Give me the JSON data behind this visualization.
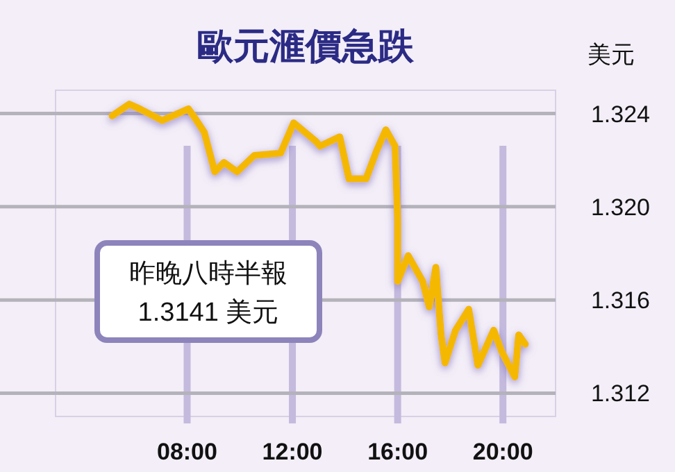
{
  "chart_data": {
    "type": "line",
    "title": "歐元滙價急跌",
    "ylabel": "美元",
    "annotations": [
      "昨晚八時半報\n1.3141 美元"
    ],
    "x": [
      5.15,
      5.8,
      6.2,
      7.05,
      8.05,
      8.3,
      8.65,
      9.05,
      9.4,
      9.9,
      10.55,
      11.55,
      12.05,
      12.9,
      13.05,
      13.8,
      14.15,
      14.8,
      15.2,
      15.55,
      15.9,
      16.0,
      16.0,
      16.4,
      16.95,
      17.2,
      17.45,
      17.65,
      17.8,
      18.2,
      18.7,
      19.05,
      19.65,
      19.95,
      20.45,
      20.6,
      20.85
    ],
    "series": [
      {
        "color": "#f5b800",
        "values": [
          1.3239,
          1.3244,
          1.3242,
          1.3237,
          1.3242,
          1.3238,
          1.3232,
          1.3215,
          1.3219,
          1.3215,
          1.3222,
          1.3223,
          1.3236,
          1.3228,
          1.3226,
          1.323,
          1.3212,
          1.3212,
          1.3224,
          1.3233,
          1.3226,
          1.3194,
          1.3168,
          1.3179,
          1.3168,
          1.3157,
          1.3174,
          1.3145,
          1.3133,
          1.3147,
          1.3156,
          1.3132,
          1.3147,
          1.3138,
          1.3127,
          1.3145,
          1.3141
        ]
      }
    ],
    "xlim": [
      3,
      22
    ],
    "ylim": [
      1.311,
      1.325
    ],
    "xticks": [
      {
        "value": 8,
        "label": "08:00"
      },
      {
        "value": 12,
        "label": "12:00"
      },
      {
        "value": 16,
        "label": "16:00"
      },
      {
        "value": 20,
        "label": "20:00"
      }
    ],
    "yticks": [
      1.312,
      1.316,
      {
        "value": 1.32,
        "label": "1.320"
      },
      1.324
    ],
    "grid": true,
    "line_style": "solid",
    "marker": "none"
  }
}
